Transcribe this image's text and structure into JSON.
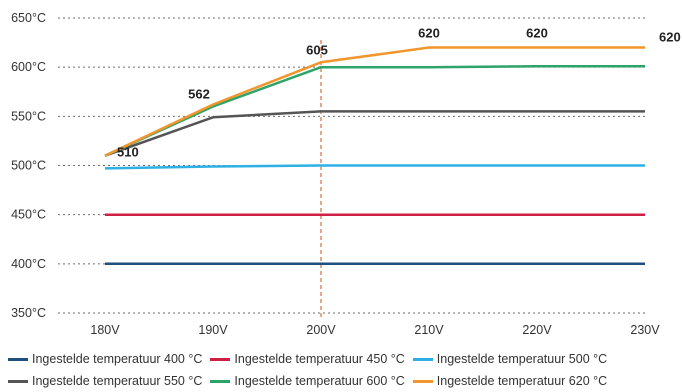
{
  "chart_data": {
    "type": "line",
    "categories": [
      "180V",
      "190V",
      "200V",
      "210V",
      "220V",
      "230V"
    ],
    "y_ticks": [
      "350°C",
      "400°C",
      "450°C",
      "500°C",
      "550°C",
      "600°C",
      "650°C"
    ],
    "ylim": [
      350,
      650
    ],
    "grid": "horizontal dotted",
    "reference_line": {
      "x": "200V",
      "style": "dashed",
      "color": "#d1733a"
    },
    "series": [
      {
        "name": "Ingestelde temperatuur 400 °C",
        "color": "#1d4f7f",
        "values": [
          400,
          400,
          400,
          400,
          400,
          400
        ]
      },
      {
        "name": "Ingestelde temperatuur 450 °C",
        "color": "#d01f45",
        "values": [
          450,
          450,
          450,
          450,
          450,
          450
        ]
      },
      {
        "name": "Ingestelde temperatuur 500 °C",
        "color": "#2eb0e5",
        "values": [
          497,
          499,
          500,
          500,
          500,
          500
        ]
      },
      {
        "name": "Ingestelde temperatuur 550 °C",
        "color": "#555555",
        "values": [
          510,
          549,
          555,
          555,
          555,
          555
        ]
      },
      {
        "name": "Ingestelde temperatuur 600 °C",
        "color": "#2ea36a",
        "values": [
          510,
          560,
          600,
          600,
          601,
          601
        ]
      },
      {
        "name": "Ingestelde temperatuur 620 °C",
        "color": "#f0962c",
        "values": [
          510,
          562,
          605,
          620,
          620,
          620
        ]
      }
    ],
    "data_labels": [
      {
        "x": "180V",
        "y": 510,
        "text": "510"
      },
      {
        "x": "190V",
        "y": 562,
        "text": "562"
      },
      {
        "x": "200V",
        "y": 605,
        "text": "605"
      },
      {
        "x": "210V",
        "y": 620,
        "text": "620"
      },
      {
        "x": "220V",
        "y": 620,
        "text": "620"
      },
      {
        "x": "230V",
        "y": 620,
        "text": "620"
      }
    ],
    "legend_position": "bottom"
  }
}
